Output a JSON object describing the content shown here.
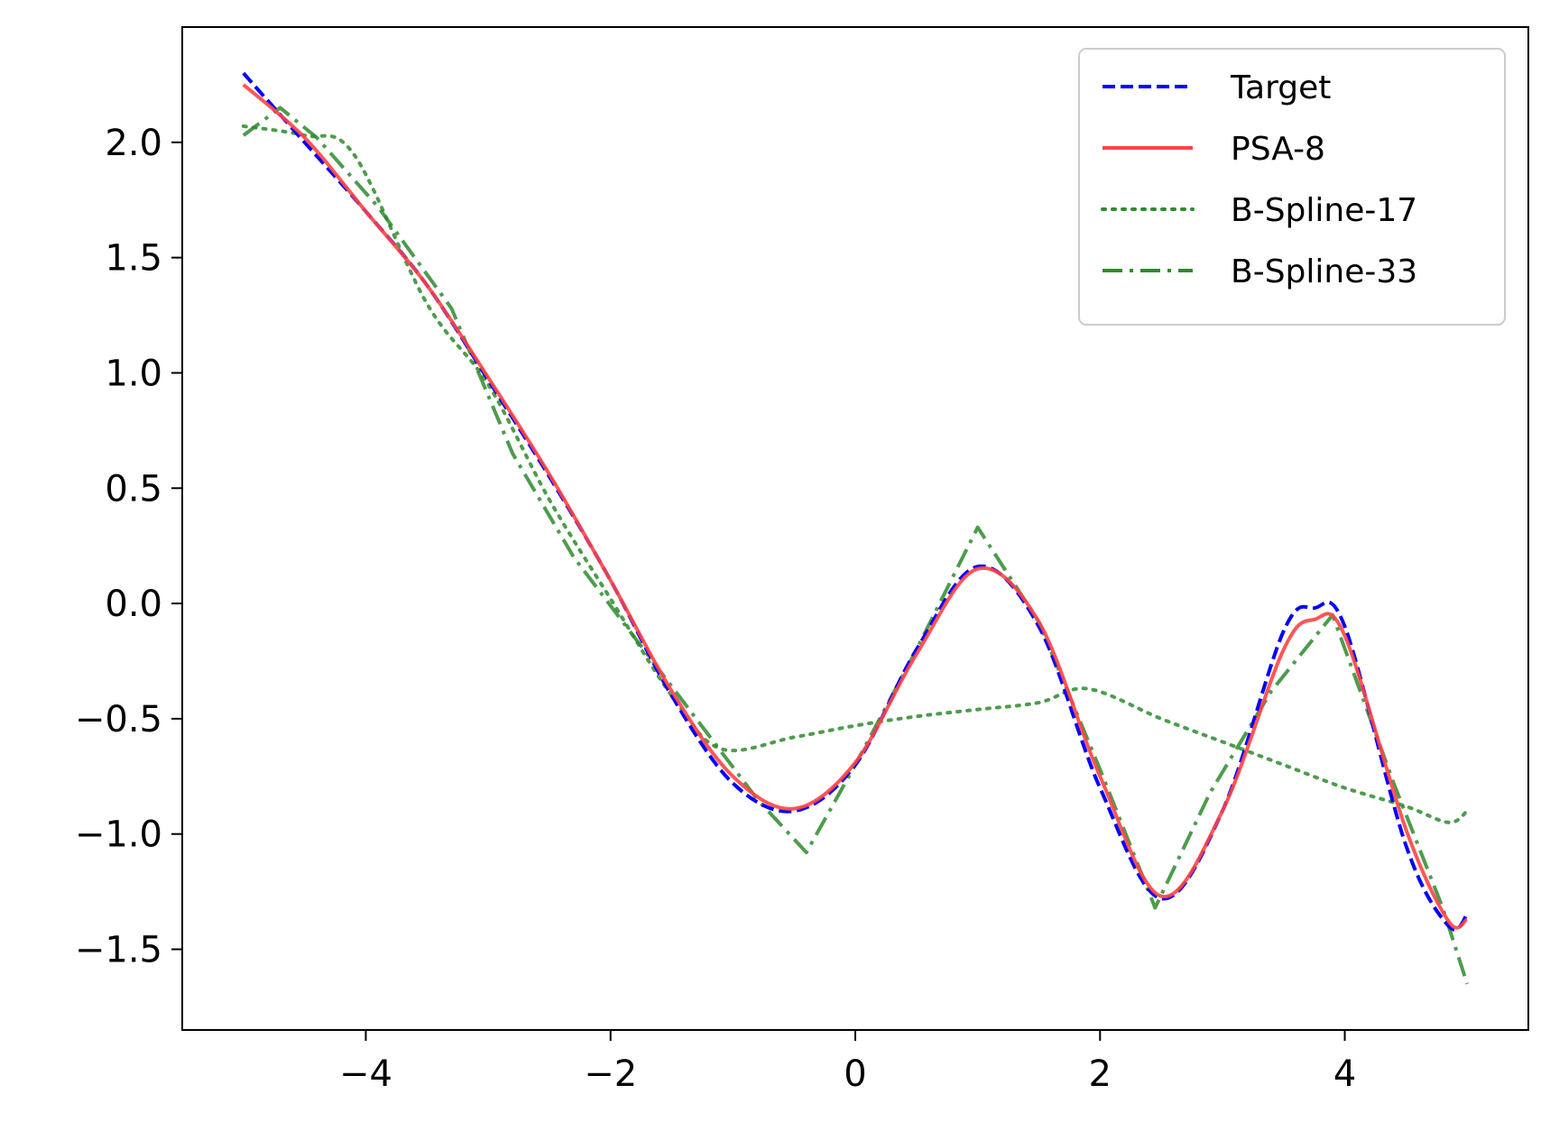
{
  "chart_data": {
    "type": "line",
    "title": "",
    "xlabel": "",
    "ylabel": "",
    "xlim": [
      -5.5,
      5.5
    ],
    "ylim": [
      -1.85,
      2.5
    ],
    "xticks": [
      -4,
      -2,
      0,
      2,
      4
    ],
    "xtick_labels": [
      "−4",
      "−2",
      "0",
      "2",
      "4"
    ],
    "yticks": [
      -1.5,
      -1.0,
      -0.5,
      0.0,
      0.5,
      1.0,
      1.5,
      2.0
    ],
    "ytick_labels": [
      "−1.5",
      "−1.0",
      "−0.5",
      "0.0",
      "0.5",
      "1.0",
      "1.5",
      "2.0"
    ],
    "grid": false,
    "legend_position": "top-right",
    "series": [
      {
        "name": "Target",
        "color": "#0000ff",
        "style": "dashed",
        "x": [
          -5.0,
          -4.5,
          -4.0,
          -3.5,
          -3.0,
          -2.5,
          -2.0,
          -1.5,
          -1.0,
          -0.5,
          0.0,
          0.5,
          1.0,
          1.5,
          2.0,
          2.5,
          3.0,
          3.5,
          3.75,
          4.0,
          4.5,
          4.85,
          5.0
        ],
        "y": [
          2.3,
          2.0,
          1.7,
          1.38,
          0.97,
          0.55,
          0.1,
          -0.4,
          -0.78,
          -0.9,
          -0.7,
          -0.2,
          0.16,
          -0.1,
          -0.8,
          -1.28,
          -0.9,
          -0.12,
          -0.02,
          -0.1,
          -1.05,
          -1.4,
          -1.35
        ]
      },
      {
        "name": "PSA-8",
        "color": "#ff4444",
        "style": "solid",
        "x": [
          -5.0,
          -4.5,
          -4.0,
          -3.5,
          -3.0,
          -2.5,
          -2.0,
          -1.5,
          -1.0,
          -0.5,
          0.0,
          0.5,
          1.0,
          1.5,
          2.0,
          2.5,
          3.0,
          3.5,
          3.75,
          4.0,
          4.5,
          4.85,
          5.0
        ],
        "y": [
          2.25,
          2.02,
          1.7,
          1.38,
          0.98,
          0.56,
          0.1,
          -0.38,
          -0.75,
          -0.89,
          -0.69,
          -0.22,
          0.15,
          -0.08,
          -0.75,
          -1.27,
          -0.9,
          -0.2,
          -0.07,
          -0.14,
          -0.98,
          -1.38,
          -1.37
        ]
      },
      {
        "name": "B-Spline-17",
        "color": "#2e8b2e",
        "style": "dotted",
        "x": [
          -5.0,
          -4.5,
          -4.1,
          -3.5,
          -3.0,
          -2.5,
          -2.0,
          -1.5,
          -1.1,
          -0.5,
          0.0,
          0.5,
          1.0,
          1.5,
          1.9,
          2.5,
          3.0,
          3.5,
          4.0,
          4.5,
          4.85,
          5.0
        ],
        "y": [
          2.07,
          2.03,
          1.95,
          1.3,
          0.95,
          0.45,
          0.02,
          -0.4,
          -0.63,
          -0.58,
          -0.53,
          -0.49,
          -0.46,
          -0.43,
          -0.37,
          -0.5,
          -0.6,
          -0.7,
          -0.8,
          -0.88,
          -0.95,
          -0.9
        ]
      },
      {
        "name": "B-Spline-33",
        "color": "#2e8b2e",
        "style": "dashdot",
        "x": [
          -5.0,
          -4.7,
          -4.4,
          -3.9,
          -3.3,
          -2.8,
          -2.3,
          -1.8,
          -1.3,
          -0.8,
          -0.4,
          0.0,
          0.5,
          1.0,
          1.5,
          2.0,
          2.45,
          2.9,
          3.4,
          3.9,
          4.4,
          4.8,
          5.0
        ],
        "y": [
          2.03,
          2.15,
          2.02,
          1.72,
          1.28,
          0.65,
          0.2,
          -0.15,
          -0.5,
          -0.85,
          -1.08,
          -0.7,
          -0.2,
          0.33,
          -0.08,
          -0.72,
          -1.32,
          -0.82,
          -0.38,
          -0.05,
          -0.78,
          -1.32,
          -1.65
        ]
      }
    ]
  }
}
